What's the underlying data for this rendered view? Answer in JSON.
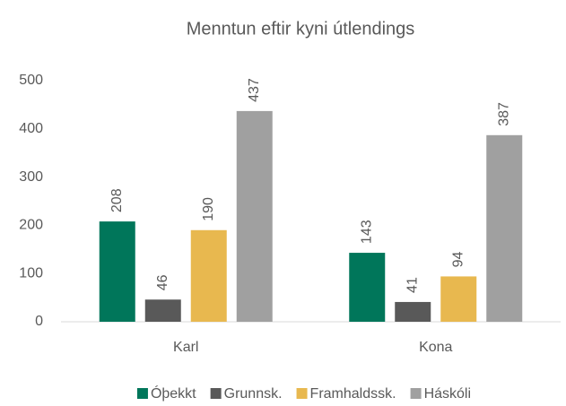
{
  "chart_data": {
    "type": "bar",
    "title": "Menntun eftir kyni útlendings",
    "categories": [
      "Karl",
      "Kona"
    ],
    "series": [
      {
        "name": "Óþekkt",
        "color": "#00765a",
        "values": [
          208,
          143
        ]
      },
      {
        "name": "Grunnsk.",
        "color": "#595959",
        "values": [
          46,
          41
        ]
      },
      {
        "name": "Framhaldssk.",
        "color": "#e8b84f",
        "values": [
          190,
          94
        ]
      },
      {
        "name": "Háskóli",
        "color": "#a0a0a0",
        "values": [
          437,
          387
        ]
      }
    ],
    "ylim": [
      0,
      500
    ],
    "yticks": [
      0,
      100,
      200,
      300,
      400,
      500
    ],
    "grid": false,
    "legend": "bottom"
  }
}
